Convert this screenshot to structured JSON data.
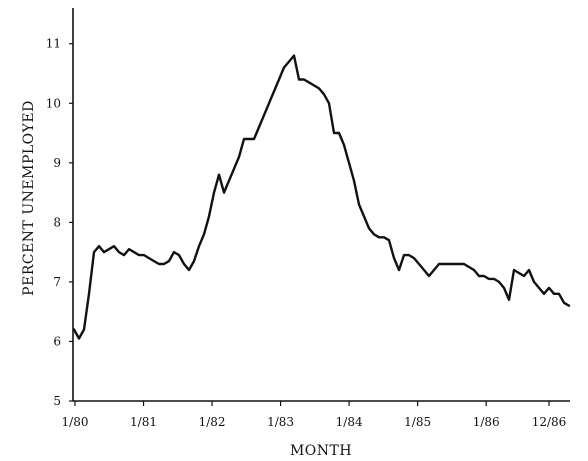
{
  "chart_data": {
    "type": "line",
    "title": "",
    "xlabel": "MONTH",
    "ylabel": "PERCENT UNEMPLOYED",
    "ylim": [
      5,
      11.6
    ],
    "yticks": [
      5,
      6,
      7,
      8,
      9,
      10,
      11
    ],
    "xlim": [
      "1/80",
      "12/86"
    ],
    "xticks": [
      "1/80",
      "1/81",
      "1/82",
      "1/83",
      "1/84",
      "1/85",
      "1/86",
      "12/86"
    ],
    "grid": false,
    "series": [
      {
        "values": [
          6.2,
          6.05,
          6.2,
          6.8,
          7.5,
          7.6,
          7.5,
          7.55,
          7.6,
          7.5,
          7.45,
          7.55,
          7.5,
          7.45,
          7.45,
          7.4,
          7.35,
          7.3,
          7.3,
          7.35,
          7.5,
          7.45,
          7.3,
          7.2,
          7.35,
          7.6,
          7.8,
          8.1,
          8.5,
          8.8,
          8.5,
          8.7,
          8.9,
          9.1,
          9.4,
          9.4,
          9.4,
          9.6,
          9.8,
          10.0,
          10.2,
          10.4,
          10.6,
          10.7,
          10.8,
          10.4,
          10.4,
          10.35,
          10.3,
          10.25,
          10.15,
          10.0,
          9.5,
          9.5,
          9.3,
          9.0,
          8.7,
          8.3,
          8.1,
          7.9,
          7.8,
          7.75,
          7.75,
          7.7,
          7.4,
          7.2,
          7.45,
          7.45,
          7.4,
          7.3,
          7.2,
          7.1,
          7.2,
          7.3,
          7.3,
          7.3,
          7.3,
          7.3,
          7.3,
          7.25,
          7.2,
          7.1,
          7.1,
          7.05,
          7.05,
          7.0,
          6.9,
          6.7,
          7.2,
          7.15,
          7.1,
          7.2,
          7.0,
          6.9,
          6.8,
          6.9,
          6.8,
          6.8,
          6.65,
          6.6
        ]
      }
    ]
  }
}
